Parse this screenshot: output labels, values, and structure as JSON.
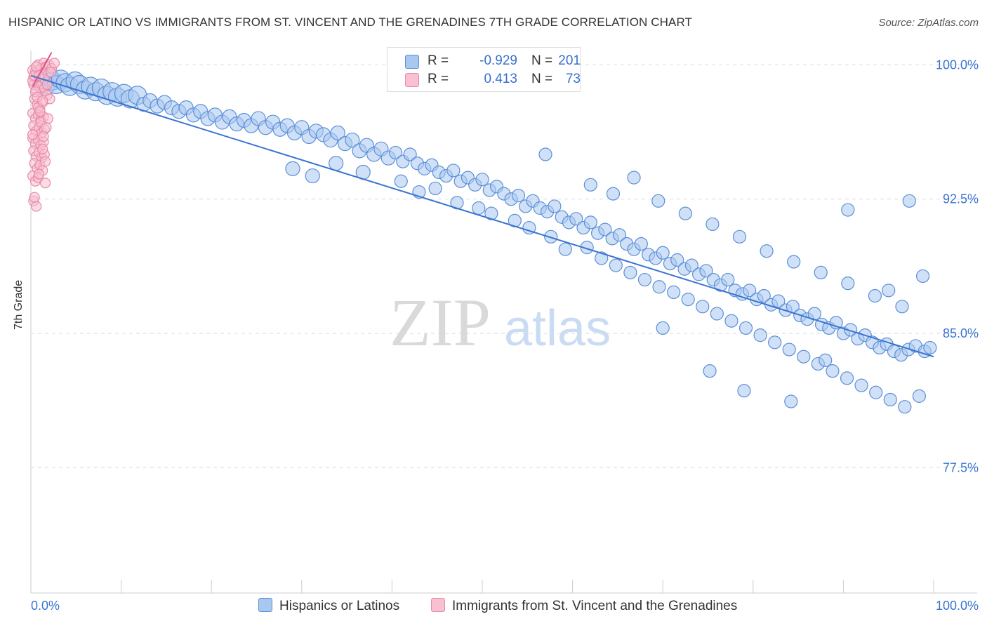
{
  "title": "HISPANIC OR LATINO VS IMMIGRANTS FROM ST. VINCENT AND THE GRENADINES 7TH GRADE CORRELATION CHART",
  "source": "Source: ZipAtlas.com",
  "watermark": {
    "zip": "ZIP",
    "atlas": "atlas"
  },
  "legend": {
    "rows": [
      {
        "r_label": "R =",
        "r_value": "-0.929",
        "n_label": "N =",
        "n_value": "201"
      },
      {
        "r_label": "R =",
        "r_value": "0.413",
        "n_label": "N =",
        "n_value": "73"
      }
    ]
  },
  "colors": {
    "blue_fill": "#a9c8f0",
    "blue_stroke": "#5b8fd8",
    "blue_line": "#3a74d0",
    "pink_fill": "#f8c0d0",
    "pink_stroke": "#e88aa8",
    "pink_line": "#e0507f",
    "grid": "#dddddd",
    "tick_text": "#3a74d0"
  },
  "chart_data": {
    "type": "scatter",
    "title": "HISPANIC OR LATINO VS IMMIGRANTS FROM ST. VINCENT AND THE GRENADINES 7TH GRADE CORRELATION CHART",
    "xlabel": "",
    "ylabel": "7th Grade",
    "xlim": [
      0,
      100
    ],
    "ylim": [
      70.5,
      100.8
    ],
    "x_tick_labels": {
      "left": "0.0%",
      "right": "100.0%"
    },
    "y_ticks": [
      {
        "value": 100.0,
        "label": "100.0%"
      },
      {
        "value": 92.5,
        "label": "92.5%"
      },
      {
        "value": 85.0,
        "label": "85.0%"
      },
      {
        "value": 77.5,
        "label": "77.5%"
      }
    ],
    "series": [
      {
        "name": "Hispanics or Latinos",
        "color": "#a9c8f0",
        "r": -0.929,
        "n": 201,
        "trend": {
          "x": [
            0,
            100
          ],
          "y": [
            99.4,
            83.7
          ]
        },
        "points": [
          [
            1.2,
            99.0
          ],
          [
            1.6,
            98.8
          ],
          [
            2.0,
            99.3
          ],
          [
            2.4,
            99.1
          ],
          [
            2.8,
            98.9
          ],
          [
            3.3,
            99.2
          ],
          [
            3.8,
            99.0
          ],
          [
            4.3,
            98.8
          ],
          [
            4.9,
            99.1
          ],
          [
            5.4,
            98.9
          ],
          [
            6.0,
            98.6
          ],
          [
            6.6,
            98.8
          ],
          [
            7.2,
            98.5
          ],
          [
            7.8,
            98.7
          ],
          [
            8.4,
            98.3
          ],
          [
            9.0,
            98.5
          ],
          [
            9.6,
            98.2
          ],
          [
            10.3,
            98.4
          ],
          [
            11.0,
            98.1
          ],
          [
            11.8,
            98.3
          ],
          [
            12.5,
            97.8
          ],
          [
            13.2,
            98.0
          ],
          [
            14.0,
            97.7
          ],
          [
            14.8,
            97.9
          ],
          [
            15.6,
            97.6
          ],
          [
            16.4,
            97.4
          ],
          [
            17.2,
            97.6
          ],
          [
            18.0,
            97.2
          ],
          [
            18.8,
            97.4
          ],
          [
            19.6,
            97.0
          ],
          [
            20.4,
            97.2
          ],
          [
            21.2,
            96.8
          ],
          [
            22.0,
            97.1
          ],
          [
            22.8,
            96.7
          ],
          [
            23.6,
            96.9
          ],
          [
            24.4,
            96.6
          ],
          [
            25.2,
            97.0
          ],
          [
            26.0,
            96.5
          ],
          [
            26.8,
            96.8
          ],
          [
            27.6,
            96.4
          ],
          [
            28.4,
            96.6
          ],
          [
            29.2,
            96.2
          ],
          [
            30.0,
            96.5
          ],
          [
            30.8,
            96.0
          ],
          [
            31.6,
            96.3
          ],
          [
            32.4,
            96.1
          ],
          [
            33.2,
            95.8
          ],
          [
            34.0,
            96.2
          ],
          [
            34.8,
            95.6
          ],
          [
            35.6,
            95.8
          ],
          [
            36.4,
            95.2
          ],
          [
            37.2,
            95.5
          ],
          [
            38.0,
            95.0
          ],
          [
            38.8,
            95.3
          ],
          [
            39.6,
            94.8
          ],
          [
            40.4,
            95.1
          ],
          [
            41.2,
            94.6
          ],
          [
            42.0,
            95.0
          ],
          [
            42.8,
            94.5
          ],
          [
            43.6,
            94.2
          ],
          [
            44.4,
            94.4
          ],
          [
            45.2,
            94.0
          ],
          [
            46.0,
            93.8
          ],
          [
            46.8,
            94.1
          ],
          [
            47.6,
            93.5
          ],
          [
            48.4,
            93.7
          ],
          [
            49.2,
            93.3
          ],
          [
            50.0,
            93.6
          ],
          [
            50.8,
            93.0
          ],
          [
            51.6,
            93.2
          ],
          [
            52.4,
            92.8
          ],
          [
            53.2,
            92.5
          ],
          [
            54.0,
            92.7
          ],
          [
            54.8,
            92.1
          ],
          [
            55.6,
            92.4
          ],
          [
            56.4,
            92.0
          ],
          [
            57.2,
            91.8
          ],
          [
            58.0,
            92.1
          ],
          [
            58.8,
            91.5
          ],
          [
            59.6,
            91.2
          ],
          [
            60.4,
            91.4
          ],
          [
            61.2,
            90.9
          ],
          [
            62.0,
            91.2
          ],
          [
            62.8,
            90.6
          ],
          [
            63.6,
            90.8
          ],
          [
            64.4,
            90.3
          ],
          [
            65.2,
            90.5
          ],
          [
            66.0,
            90.0
          ],
          [
            66.8,
            89.7
          ],
          [
            67.6,
            90.0
          ],
          [
            68.4,
            89.4
          ],
          [
            69.2,
            89.2
          ],
          [
            70.0,
            89.5
          ],
          [
            70.8,
            88.9
          ],
          [
            71.6,
            89.1
          ],
          [
            72.4,
            88.6
          ],
          [
            73.2,
            88.8
          ],
          [
            74.0,
            88.3
          ],
          [
            74.8,
            88.5
          ],
          [
            75.6,
            88.0
          ],
          [
            76.4,
            87.7
          ],
          [
            77.2,
            88.0
          ],
          [
            78.0,
            87.4
          ],
          [
            78.8,
            87.2
          ],
          [
            79.6,
            87.4
          ],
          [
            80.4,
            86.9
          ],
          [
            81.2,
            87.1
          ],
          [
            82.0,
            86.6
          ],
          [
            82.8,
            86.8
          ],
          [
            83.6,
            86.3
          ],
          [
            84.4,
            86.5
          ],
          [
            85.2,
            86.0
          ],
          [
            86.0,
            85.8
          ],
          [
            86.8,
            86.1
          ],
          [
            87.6,
            85.5
          ],
          [
            88.4,
            85.3
          ],
          [
            89.2,
            85.6
          ],
          [
            90.0,
            85.0
          ],
          [
            90.8,
            85.2
          ],
          [
            91.6,
            84.7
          ],
          [
            92.4,
            84.9
          ],
          [
            93.2,
            84.5
          ],
          [
            94.0,
            84.2
          ],
          [
            94.8,
            84.4
          ],
          [
            95.6,
            84.0
          ],
          [
            96.4,
            83.8
          ],
          [
            97.2,
            84.1
          ],
          [
            98.0,
            84.3
          ],
          [
            99.0,
            84.0
          ],
          [
            99.6,
            84.2
          ],
          [
            29.0,
            94.2
          ],
          [
            31.2,
            93.8
          ],
          [
            33.8,
            94.5
          ],
          [
            36.8,
            94.0
          ],
          [
            41.0,
            93.5
          ],
          [
            43.0,
            92.9
          ],
          [
            44.8,
            93.1
          ],
          [
            47.2,
            92.3
          ],
          [
            49.6,
            92.0
          ],
          [
            51.0,
            91.7
          ],
          [
            53.6,
            91.3
          ],
          [
            55.2,
            90.9
          ],
          [
            57.6,
            90.4
          ],
          [
            59.2,
            89.7
          ],
          [
            61.6,
            89.8
          ],
          [
            63.2,
            89.2
          ],
          [
            64.8,
            88.8
          ],
          [
            66.4,
            88.4
          ],
          [
            68.0,
            88.0
          ],
          [
            69.6,
            87.6
          ],
          [
            71.2,
            87.3
          ],
          [
            72.8,
            86.9
          ],
          [
            74.4,
            86.5
          ],
          [
            76.0,
            86.1
          ],
          [
            77.6,
            85.7
          ],
          [
            79.2,
            85.3
          ],
          [
            80.8,
            84.9
          ],
          [
            82.4,
            84.5
          ],
          [
            84.0,
            84.1
          ],
          [
            85.6,
            83.7
          ],
          [
            87.2,
            83.3
          ],
          [
            88.8,
            82.9
          ],
          [
            90.4,
            82.5
          ],
          [
            92.0,
            82.1
          ],
          [
            93.6,
            81.7
          ],
          [
            95.2,
            81.3
          ],
          [
            96.8,
            80.9
          ],
          [
            98.4,
            81.5
          ],
          [
            57.0,
            95.0
          ],
          [
            62.0,
            93.3
          ],
          [
            64.5,
            92.8
          ],
          [
            66.8,
            93.7
          ],
          [
            69.5,
            92.4
          ],
          [
            72.5,
            91.7
          ],
          [
            75.5,
            91.1
          ],
          [
            78.5,
            90.4
          ],
          [
            81.5,
            89.6
          ],
          [
            84.5,
            89.0
          ],
          [
            87.5,
            88.4
          ],
          [
            90.5,
            87.8
          ],
          [
            93.5,
            87.1
          ],
          [
            96.5,
            86.5
          ],
          [
            98.8,
            88.2
          ],
          [
            97.3,
            92.4
          ],
          [
            90.5,
            91.9
          ],
          [
            88.0,
            83.5
          ],
          [
            84.2,
            81.2
          ],
          [
            79.0,
            81.8
          ],
          [
            70.0,
            85.3
          ],
          [
            75.2,
            82.9
          ],
          [
            95.0,
            87.4
          ]
        ]
      },
      {
        "name": "Immigrants from St. Vincent and the Grenadines",
        "color": "#f8c0d0",
        "r": 0.413,
        "n": 73,
        "trend": {
          "x": [
            0.2,
            2.3
          ],
          "y": [
            98.8,
            100.7
          ]
        },
        "points": [
          [
            0.2,
            99.7
          ],
          [
            0.3,
            99.3
          ],
          [
            0.5,
            99.6
          ],
          [
            0.8,
            100.0
          ],
          [
            1.1,
            99.8
          ],
          [
            1.4,
            100.1
          ],
          [
            1.7,
            99.9
          ],
          [
            2.0,
            100.0
          ],
          [
            2.3,
            99.8
          ],
          [
            2.6,
            100.1
          ],
          [
            0.3,
            98.9
          ],
          [
            0.6,
            98.6
          ],
          [
            0.9,
            98.8
          ],
          [
            1.2,
            98.4
          ],
          [
            1.5,
            98.7
          ],
          [
            1.8,
            98.3
          ],
          [
            0.4,
            98.1
          ],
          [
            0.7,
            97.8
          ],
          [
            1.0,
            97.5
          ],
          [
            1.3,
            97.9
          ],
          [
            0.2,
            97.3
          ],
          [
            0.5,
            97.0
          ],
          [
            0.8,
            97.2
          ],
          [
            1.1,
            96.9
          ],
          [
            1.4,
            97.1
          ],
          [
            0.3,
            96.6
          ],
          [
            0.6,
            96.3
          ],
          [
            0.9,
            96.5
          ],
          [
            1.2,
            96.2
          ],
          [
            1.5,
            96.4
          ],
          [
            0.2,
            95.9
          ],
          [
            0.5,
            95.6
          ],
          [
            0.8,
            95.8
          ],
          [
            1.1,
            95.5
          ],
          [
            1.4,
            95.7
          ],
          [
            0.3,
            95.2
          ],
          [
            0.6,
            94.9
          ],
          [
            0.9,
            95.1
          ],
          [
            1.2,
            94.8
          ],
          [
            1.5,
            95.0
          ],
          [
            0.4,
            94.5
          ],
          [
            0.7,
            94.2
          ],
          [
            1.0,
            94.4
          ],
          [
            1.3,
            94.1
          ],
          [
            0.2,
            93.8
          ],
          [
            0.5,
            93.5
          ],
          [
            0.8,
            93.7
          ],
          [
            1.6,
            93.4
          ],
          [
            0.3,
            92.4
          ],
          [
            0.6,
            92.1
          ],
          [
            0.2,
            99.1
          ],
          [
            0.5,
            98.5
          ],
          [
            0.8,
            97.6
          ],
          [
            1.1,
            96.8
          ],
          [
            1.4,
            96.0
          ],
          [
            0.4,
            99.4
          ],
          [
            0.7,
            98.2
          ],
          [
            1.0,
            97.4
          ],
          [
            1.3,
            95.3
          ],
          [
            1.6,
            94.6
          ],
          [
            1.9,
            97.0
          ],
          [
            2.1,
            98.1
          ],
          [
            1.7,
            96.5
          ],
          [
            0.9,
            93.9
          ],
          [
            0.4,
            92.6
          ],
          [
            1.2,
            99.5
          ],
          [
            1.5,
            99.2
          ],
          [
            1.8,
            98.9
          ],
          [
            2.2,
            99.6
          ],
          [
            0.6,
            99.9
          ],
          [
            0.9,
            99.4
          ],
          [
            1.3,
            98.0
          ],
          [
            0.2,
            96.1
          ]
        ]
      }
    ]
  }
}
